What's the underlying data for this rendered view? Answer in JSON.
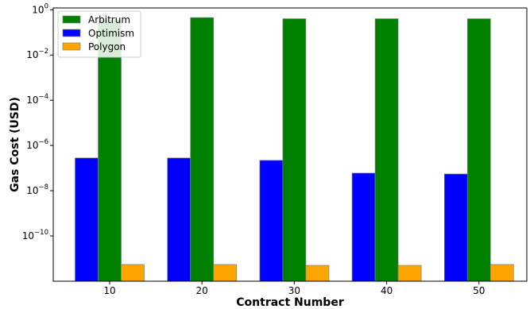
{
  "chart_data": {
    "type": "bar",
    "xlabel": "Contract Number",
    "ylabel": "Gas Cost (USD)",
    "yscale": "log",
    "ylim": [
      1e-12,
      1.2
    ],
    "categories": [
      "10",
      "20",
      "30",
      "40",
      "50"
    ],
    "series": [
      {
        "name": "Optimism",
        "color": "#0000ff",
        "values": [
          2.8e-07,
          2.8e-07,
          2.2e-07,
          6e-08,
          5.5e-08
        ]
      },
      {
        "name": "Arbitrum",
        "color": "#008000",
        "values": [
          0.35,
          0.45,
          0.4,
          0.4,
          0.4
        ]
      },
      {
        "name": "Polygon",
        "color": "#ffa500",
        "values": [
          5.5e-12,
          5.5e-12,
          5e-12,
          5e-12,
          5.5e-12
        ]
      }
    ],
    "legend": {
      "position": "top-left",
      "entries": [
        "Arbitrum",
        "Optimism",
        "Polygon"
      ]
    },
    "yticks": [
      {
        "value": 1,
        "base": "10",
        "exp": "0"
      },
      {
        "value": 0.01,
        "base": "10",
        "exp": "−2"
      },
      {
        "value": 0.0001,
        "base": "10",
        "exp": "−4"
      },
      {
        "value": 1e-06,
        "base": "10",
        "exp": "−6"
      },
      {
        "value": 1e-08,
        "base": "10",
        "exp": "−8"
      },
      {
        "value": 1e-10,
        "base": "10",
        "exp": "−10"
      }
    ],
    "grid": false
  }
}
